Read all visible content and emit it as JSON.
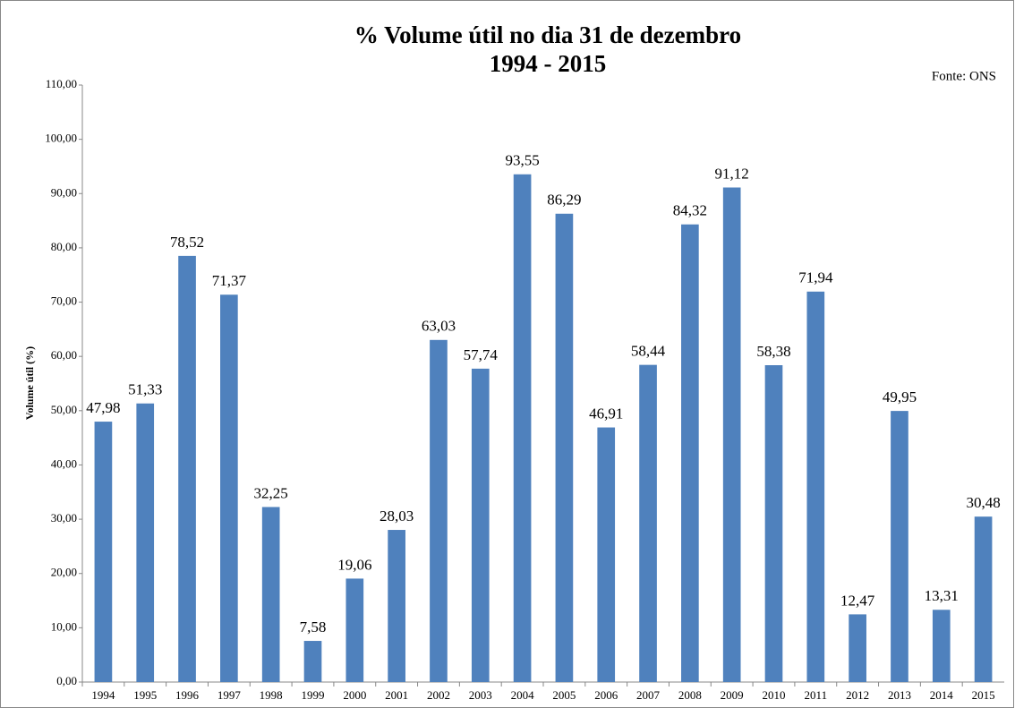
{
  "chart_data": {
    "type": "bar",
    "title": "% Volume útil no dia 31 de dezembro",
    "subtitle": "1994 - 2015",
    "annotation": "Fonte: ONS",
    "ylabel": "Volume útil (%)",
    "categories": [
      "1994",
      "1995",
      "1996",
      "1997",
      "1998",
      "1999",
      "2000",
      "2001",
      "2002",
      "2003",
      "2004",
      "2005",
      "2006",
      "2007",
      "2008",
      "2009",
      "2010",
      "2011",
      "2012",
      "2013",
      "2014",
      "2015"
    ],
    "values": [
      47.98,
      51.33,
      78.52,
      71.37,
      32.25,
      7.58,
      19.06,
      28.03,
      63.03,
      57.74,
      93.55,
      86.29,
      46.91,
      58.44,
      84.32,
      91.12,
      58.38,
      71.94,
      12.47,
      49.95,
      13.31,
      30.48
    ],
    "value_labels": [
      "47,98",
      "51,33",
      "78,52",
      "71,37",
      "32,25",
      "7,58",
      "19,06",
      "28,03",
      "63,03",
      "57,74",
      "93,55",
      "86,29",
      "46,91",
      "58,44",
      "84,32",
      "91,12",
      "58,38",
      "71,94",
      "12,47",
      "49,95",
      "13,31",
      "30,48"
    ],
    "color": "#4f81bd",
    "ylim": [
      0,
      110
    ],
    "yticks": [
      {
        "value": 0,
        "label": "0,00"
      },
      {
        "value": 10,
        "label": "10,00"
      },
      {
        "value": 20,
        "label": "20,00"
      },
      {
        "value": 30,
        "label": "30,00"
      },
      {
        "value": 40,
        "label": "40,00"
      },
      {
        "value": 50,
        "label": "50,00"
      },
      {
        "value": 60,
        "label": "60,00"
      },
      {
        "value": 70,
        "label": "70,00"
      },
      {
        "value": 80,
        "label": "80,00"
      },
      {
        "value": 90,
        "label": "90,00"
      },
      {
        "value": 100,
        "label": "100,00"
      },
      {
        "value": 110,
        "label": "110,00"
      }
    ],
    "grid": false
  }
}
